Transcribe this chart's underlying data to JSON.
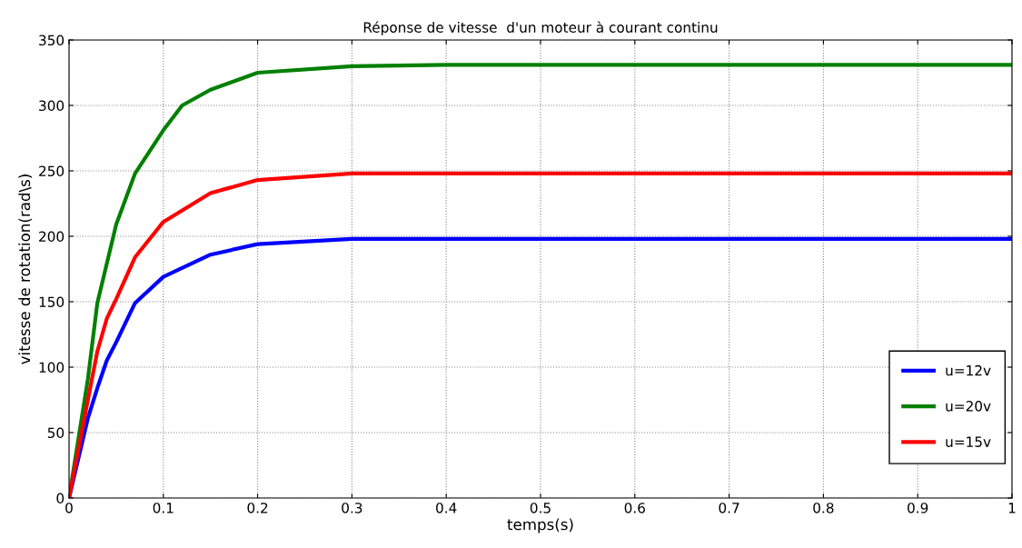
{
  "chart_data": {
    "type": "line",
    "title": "Réponse de vitesse  d'un moteur à courant continu",
    "xlabel": "temps(s)",
    "ylabel": "vitesse de rotation(rad\\s)",
    "xlim": [
      0,
      1
    ],
    "ylim": [
      0,
      350
    ],
    "xticks": [
      0,
      0.1,
      0.2,
      0.3,
      0.4,
      0.5,
      0.6,
      0.7,
      0.8,
      0.9,
      1
    ],
    "yticks": [
      0,
      50,
      100,
      150,
      200,
      250,
      300,
      350
    ],
    "grid": true,
    "legend": "bottom right",
    "line_style": "solid",
    "marker": "none",
    "series": [
      {
        "name": "u=12v",
        "color": "#0000ff",
        "x": [
          0,
          0.02,
          0.03,
          0.04,
          0.05,
          0.07,
          0.1,
          0.15,
          0.2,
          0.3,
          0.4,
          1
        ],
        "values": [
          0,
          61,
          84,
          105,
          119,
          149,
          169,
          186,
          194,
          198,
          198,
          198
        ]
      },
      {
        "name": "u=20v",
        "color": "#008000",
        "x": [
          0,
          0.02,
          0.03,
          0.05,
          0.07,
          0.1,
          0.12,
          0.15,
          0.2,
          0.3,
          0.4,
          1
        ],
        "values": [
          0,
          91,
          149,
          209,
          248,
          281,
          300,
          312,
          325,
          330,
          331,
          331
        ]
      },
      {
        "name": "u=15v",
        "color": "#ff0000",
        "x": [
          0,
          0.02,
          0.03,
          0.04,
          0.05,
          0.07,
          0.1,
          0.15,
          0.2,
          0.3,
          0.4,
          1
        ],
        "values": [
          0,
          75,
          112,
          137,
          152,
          184,
          211,
          233,
          243,
          248,
          248,
          248
        ]
      }
    ]
  }
}
